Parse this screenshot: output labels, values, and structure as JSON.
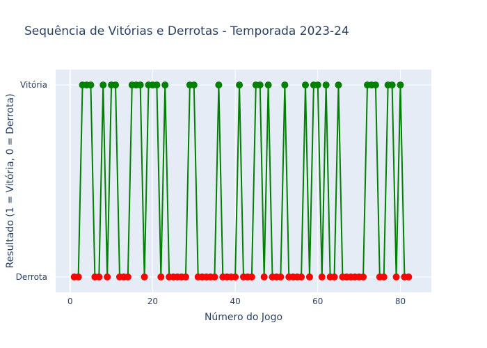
{
  "chart_data": {
    "type": "line",
    "title": "Sequência de Vitórias e Derrotas - Temporada 2023-24",
    "xlabel": "Número do Jogo",
    "ylabel": "Resultado (1 = Vitória, 0 = Derrota)",
    "xlim": [
      -3.5,
      87.5
    ],
    "ylim": [
      -0.08,
      1.08
    ],
    "x_ticks": [
      0,
      20,
      40,
      60,
      80
    ],
    "y_ticks": [
      {
        "value": 0,
        "label": "Derrota"
      },
      {
        "value": 1,
        "label": "Vitória"
      }
    ],
    "grid": true,
    "line_color": "#008000",
    "win_color": "#008000",
    "loss_color": "#ff0000",
    "series": [
      {
        "x": [
          1,
          2,
          3,
          4,
          5,
          6,
          7,
          8,
          9,
          10,
          11,
          12,
          13,
          14,
          15,
          16,
          17,
          18,
          19,
          20,
          21,
          22,
          23,
          24,
          25,
          26,
          27,
          28,
          29,
          30,
          31,
          32,
          33,
          34,
          35,
          36,
          37,
          38,
          39,
          40,
          41,
          42,
          43,
          44,
          45,
          46,
          47,
          48,
          49,
          50,
          51,
          52,
          53,
          54,
          55,
          56,
          57,
          58,
          59,
          60,
          61,
          62,
          63,
          64,
          65,
          66,
          67,
          68,
          69,
          70,
          71,
          72,
          73,
          74,
          75,
          76,
          77,
          78,
          79,
          80,
          81,
          82
        ],
        "values": [
          0,
          0,
          1,
          1,
          1,
          0,
          0,
          1,
          0,
          1,
          1,
          0,
          0,
          0,
          1,
          1,
          1,
          0,
          1,
          1,
          1,
          0,
          1,
          0,
          0,
          0,
          0,
          0,
          1,
          1,
          0,
          0,
          0,
          0,
          0,
          1,
          0,
          0,
          0,
          0,
          1,
          0,
          0,
          0,
          1,
          1,
          0,
          1,
          0,
          0,
          0,
          1,
          0,
          0,
          0,
          0,
          1,
          0,
          1,
          1,
          0,
          1,
          0,
          0,
          1,
          0,
          0,
          0,
          0,
          0,
          0,
          1,
          1,
          1,
          0,
          0,
          1,
          1,
          0,
          1,
          0,
          0
        ]
      }
    ]
  }
}
